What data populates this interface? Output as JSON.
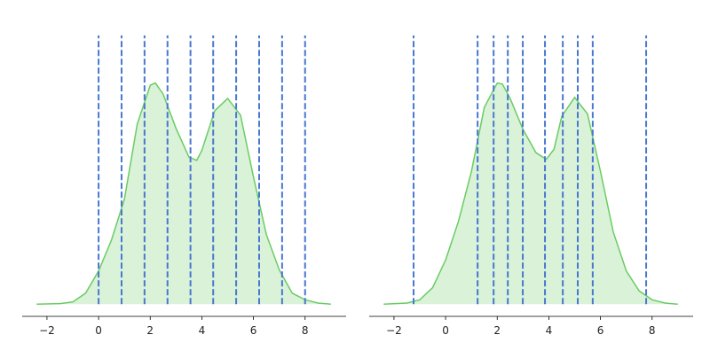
{
  "chart_data": [
    {
      "type": "area",
      "color": "#6acc64",
      "vline_color": "#4878d0",
      "x": [
        -2.4,
        -1.5,
        -1,
        -0.5,
        0,
        0.5,
        1,
        1.5,
        2,
        2.2,
        2.5,
        3,
        3.5,
        3.8,
        4,
        4.5,
        5,
        5.5,
        6,
        6.5,
        7,
        7.5,
        8,
        8.5,
        9
      ],
      "values": [
        0,
        0.0005,
        0.002,
        0.01,
        0.03,
        0.058,
        0.095,
        0.163,
        0.198,
        0.2,
        0.19,
        0.159,
        0.133,
        0.13,
        0.139,
        0.175,
        0.186,
        0.171,
        0.115,
        0.063,
        0.031,
        0.01,
        0.004,
        0.001,
        0
      ],
      "vlines": [
        0,
        0.89,
        1.78,
        2.67,
        3.56,
        4.44,
        5.33,
        6.22,
        7.11,
        8
      ],
      "xlim": [
        -2.96,
        9.59
      ],
      "ylim": [
        -0.011,
        0.243
      ],
      "xticks": [
        {
          "value": -2,
          "label": "−2"
        },
        0,
        2,
        4,
        6,
        8
      ]
    },
    {
      "type": "area",
      "color": "#6acc64",
      "vline_color": "#4878d0",
      "x": [
        -2.4,
        -1.5,
        -1,
        -0.5,
        0,
        0.5,
        1,
        1.5,
        2,
        2.2,
        2.5,
        3,
        3.5,
        3.9,
        4.2,
        4.5,
        5,
        5.5,
        6,
        6.5,
        7,
        7.5,
        8,
        8.5,
        9
      ],
      "values": [
        0,
        0.001,
        0.004,
        0.015,
        0.04,
        0.075,
        0.12,
        0.178,
        0.2,
        0.199,
        0.186,
        0.158,
        0.137,
        0.131,
        0.14,
        0.17,
        0.187,
        0.172,
        0.12,
        0.065,
        0.03,
        0.012,
        0.004,
        0.001,
        0
      ],
      "vlines": [
        -1.24,
        1.24,
        1.86,
        2.41,
        2.99,
        3.85,
        4.54,
        5.12,
        5.7,
        7.77
      ],
      "xlim": [
        -2.96,
        9.59
      ],
      "ylim": [
        -0.011,
        0.243
      ],
      "xticks": [
        {
          "value": -2,
          "label": "−2"
        },
        0,
        2,
        4,
        6,
        8
      ]
    }
  ]
}
